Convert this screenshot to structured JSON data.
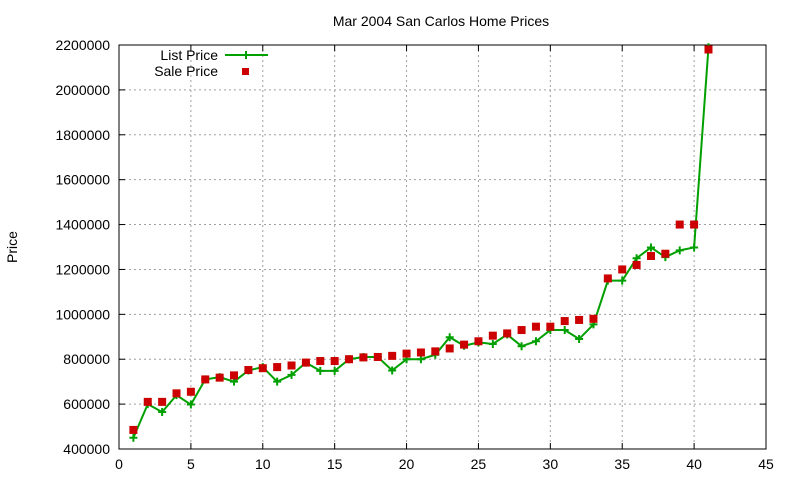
{
  "chart_data": {
    "type": "line",
    "title": "Mar 2004 San Carlos Home Prices",
    "xlabel": "",
    "ylabel": "Price",
    "xlim": [
      0,
      45
    ],
    "ylim": [
      400000,
      2200000
    ],
    "xticks": [
      0,
      5,
      10,
      15,
      20,
      25,
      30,
      35,
      40,
      45
    ],
    "yticks": [
      400000,
      600000,
      800000,
      1000000,
      1200000,
      1400000,
      1600000,
      1800000,
      2000000,
      2200000
    ],
    "grid": true,
    "legend_position": "top-left",
    "series": [
      {
        "name": "List Price",
        "style": "line+cross",
        "color": "#00a000",
        "x": [
          1,
          2,
          3,
          4,
          5,
          6,
          7,
          8,
          9,
          10,
          11,
          12,
          13,
          14,
          15,
          16,
          17,
          18,
          19,
          20,
          21,
          22,
          23,
          24,
          25,
          26,
          27,
          28,
          29,
          30,
          31,
          32,
          33,
          34,
          35,
          36,
          37,
          38,
          39,
          40,
          41
        ],
        "y": [
          450000,
          600000,
          565000,
          640000,
          598000,
          710000,
          720000,
          700000,
          750000,
          765000,
          700000,
          730000,
          785000,
          748000,
          748000,
          800000,
          810000,
          810000,
          750000,
          800000,
          800000,
          820000,
          898000,
          860000,
          875000,
          868000,
          910000,
          858000,
          880000,
          930000,
          930000,
          890000,
          955000,
          1150000,
          1150000,
          1250000,
          1298000,
          1255000,
          1285000,
          1298000,
          2190000
        ]
      },
      {
        "name": "Sale Price",
        "style": "square-marker",
        "color": "#cc0000",
        "x": [
          1,
          2,
          3,
          4,
          5,
          6,
          7,
          8,
          9,
          10,
          11,
          12,
          13,
          14,
          15,
          16,
          17,
          18,
          19,
          20,
          21,
          22,
          23,
          24,
          25,
          26,
          27,
          28,
          29,
          30,
          31,
          32,
          33,
          34,
          35,
          36,
          37,
          38,
          39,
          40,
          41
        ],
        "y": [
          485000,
          610000,
          610000,
          648000,
          655000,
          710000,
          718000,
          728000,
          752000,
          760000,
          765000,
          772000,
          785000,
          792000,
          792000,
          800000,
          808000,
          810000,
          815000,
          825000,
          830000,
          835000,
          848000,
          865000,
          880000,
          905000,
          915000,
          930000,
          945000,
          945000,
          970000,
          975000,
          980000,
          1160000,
          1200000,
          1220000,
          1260000,
          1270000,
          1400000,
          1400000,
          2180000
        ]
      }
    ]
  }
}
